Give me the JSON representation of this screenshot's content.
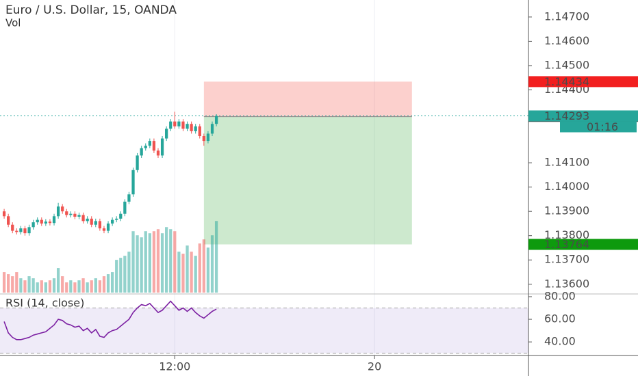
{
  "chart_data": {
    "type": "candlestick",
    "title": "Euro / U.S. Dollar, 15, OANDA",
    "volume_label": "Vol",
    "x": [
      -41,
      -40,
      -39,
      -38,
      -37,
      -36,
      -35,
      -34,
      -33,
      -32,
      -31,
      -30,
      -29,
      -28,
      -27,
      -26,
      -25,
      -24,
      -23,
      -22,
      -21,
      -20,
      -19,
      -18,
      -17,
      -16,
      -15,
      -14,
      -13,
      -12,
      -11,
      -10,
      -9,
      -8,
      -7,
      -6,
      -5,
      -4,
      -3,
      -2,
      -1,
      0,
      1,
      2,
      3,
      4,
      5,
      6,
      7,
      8,
      9,
      10
    ],
    "xlim": [
      -42,
      85
    ],
    "xticks": [
      {
        "value": 0,
        "label": "12:00"
      },
      {
        "value": 48,
        "label": "20"
      }
    ],
    "ylim": [
      1.1356,
      1.1477
    ],
    "yticks": [
      {
        "value": 1.147,
        "label": "1.14700"
      },
      {
        "value": 1.146,
        "label": "1.14600"
      },
      {
        "value": 1.145,
        "label": "1.14500"
      },
      {
        "value": 1.144,
        "label": "1.14400"
      },
      {
        "value": 1.141,
        "label": "1.14100"
      },
      {
        "value": 1.14,
        "label": "1.14000"
      },
      {
        "value": 1.139,
        "label": "1.13900"
      },
      {
        "value": 1.138,
        "label": "1.13800"
      },
      {
        "value": 1.137,
        "label": "1.13700"
      },
      {
        "value": 1.136,
        "label": "1.13600"
      }
    ],
    "open": [
      1.139,
      1.1388,
      1.13845,
      1.1382,
      1.13815,
      1.1383,
      1.1381,
      1.13835,
      1.13855,
      1.13865,
      1.1385,
      1.13858,
      1.13852,
      1.1388,
      1.1392,
      1.139,
      1.13885,
      1.1389,
      1.13878,
      1.13885,
      1.1386,
      1.1387,
      1.13845,
      1.1386,
      1.1383,
      1.1382,
      1.1385,
      1.13865,
      1.1387,
      1.1389,
      1.1394,
      1.1397,
      1.1407,
      1.1413,
      1.1416,
      1.1417,
      1.1419,
      1.1415,
      1.1413,
      1.142,
      1.1424,
      1.1427,
      1.1425,
      1.1427,
      1.1424,
      1.1426,
      1.1423,
      1.1425,
      1.1421,
      1.1419,
      1.1422,
      1.1426
    ],
    "high": [
      1.1391,
      1.1389,
      1.13855,
      1.1383,
      1.1384,
      1.1384,
      1.13845,
      1.13865,
      1.13875,
      1.13875,
      1.13868,
      1.13868,
      1.1389,
      1.13935,
      1.1393,
      1.1391,
      1.139,
      1.139,
      1.13895,
      1.13895,
      1.1388,
      1.1388,
      1.1387,
      1.1387,
      1.1384,
      1.1386,
      1.13875,
      1.1388,
      1.139,
      1.1395,
      1.1398,
      1.1408,
      1.1414,
      1.1417,
      1.1418,
      1.142,
      1.142,
      1.1416,
      1.1421,
      1.1425,
      1.1428,
      1.1431,
      1.1428,
      1.1428,
      1.1427,
      1.1427,
      1.1426,
      1.1426,
      1.1422,
      1.1423,
      1.1427,
      1.143
    ],
    "low": [
      1.1387,
      1.13835,
      1.1381,
      1.13805,
      1.13805,
      1.138,
      1.138,
      1.13825,
      1.13845,
      1.1384,
      1.1384,
      1.13842,
      1.13842,
      1.1387,
      1.1389,
      1.13875,
      1.13875,
      1.13868,
      1.13868,
      1.1385,
      1.1385,
      1.13835,
      1.13835,
      1.1382,
      1.1381,
      1.1381,
      1.1384,
      1.13855,
      1.1386,
      1.1388,
      1.1393,
      1.1396,
      1.1406,
      1.1412,
      1.1415,
      1.1416,
      1.1414,
      1.1412,
      1.1412,
      1.1419,
      1.1423,
      1.1424,
      1.1424,
      1.1423,
      1.1423,
      1.1422,
      1.1422,
      1.142,
      1.1417,
      1.1418,
      1.1421,
      1.1425
    ],
    "close": [
      1.1388,
      1.13845,
      1.1382,
      1.13815,
      1.1383,
      1.1381,
      1.13835,
      1.13855,
      1.13865,
      1.1385,
      1.13858,
      1.13852,
      1.1388,
      1.1392,
      1.139,
      1.13885,
      1.1389,
      1.13878,
      1.13885,
      1.1386,
      1.1387,
      1.13845,
      1.1386,
      1.1383,
      1.1382,
      1.1385,
      1.13865,
      1.1387,
      1.1389,
      1.1394,
      1.1397,
      1.1407,
      1.1413,
      1.1416,
      1.1417,
      1.1419,
      1.1415,
      1.1413,
      1.142,
      1.1424,
      1.1427,
      1.1425,
      1.1427,
      1.1424,
      1.1426,
      1.1423,
      1.1425,
      1.1421,
      1.1419,
      1.1422,
      1.1426,
      1.14293
    ],
    "up_color": "#26a69a",
    "down_color": "#ef5350",
    "volume": {
      "values": [
        10,
        9,
        8,
        10,
        7,
        6,
        8,
        7,
        5,
        6,
        5,
        6,
        7,
        12,
        8,
        5,
        6,
        5,
        6,
        7,
        5,
        6,
        7,
        6,
        8,
        9,
        10,
        16,
        17,
        18,
        20,
        30,
        28,
        27,
        30,
        29,
        30,
        31,
        29,
        32,
        31,
        30,
        20,
        19,
        23,
        20,
        18,
        24,
        26,
        22,
        28,
        35
      ],
      "ylim": [
        0,
        143
      ]
    },
    "last_price": 1.14293,
    "countdown": "01:16",
    "marker_price": 1.14291,
    "position": {
      "entry": 1.1429,
      "stop": 1.14434,
      "target": 1.13764,
      "x_start": 7,
      "x_end": 57
    },
    "rsi": {
      "label": "RSI (14, close)",
      "color": "#7b1fa2",
      "values": [
        58,
        48,
        44,
        42,
        42,
        43,
        44,
        46,
        47,
        48,
        49,
        52,
        55,
        60,
        59,
        56,
        55,
        53,
        54,
        50,
        52,
        48,
        51,
        45,
        44,
        48,
        50,
        51,
        54,
        57,
        60,
        66,
        70,
        73,
        72,
        74,
        70,
        66,
        68,
        72,
        76,
        72,
        68,
        70,
        67,
        70,
        66,
        63,
        61,
        64,
        67,
        69
      ],
      "ylim": [
        28,
        82.4
      ],
      "yticks": [
        {
          "value": 80,
          "label": "80.00"
        },
        {
          "value": 60,
          "label": "60.00"
        },
        {
          "value": 40,
          "label": "40.00"
        }
      ],
      "bands": [
        30,
        70
      ]
    }
  }
}
